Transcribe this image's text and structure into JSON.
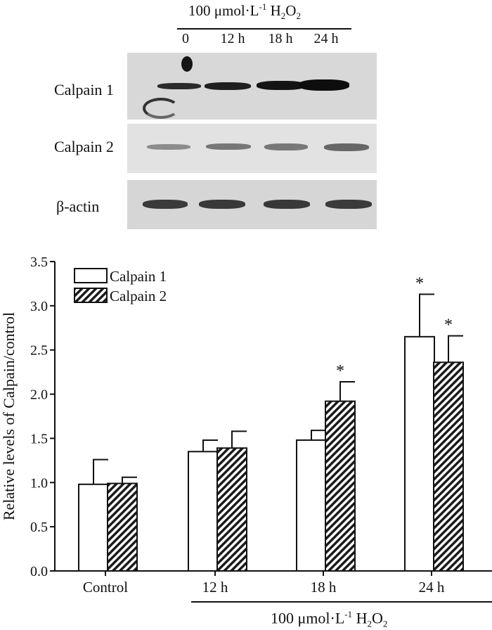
{
  "blot": {
    "header_treatment": {
      "prefix": "100 μmol·L",
      "sup": "-1",
      "mid": " H",
      "sub": "2",
      "suffix": "O",
      "sub2": "2"
    },
    "lanes": [
      "0",
      "12 h",
      "18 h",
      "24 h"
    ],
    "rows": [
      {
        "label": "Calpain 1",
        "intensities": [
          0.72,
          0.78,
          0.85,
          0.95
        ]
      },
      {
        "label": "Calpain 2",
        "intensities": [
          0.32,
          0.42,
          0.42,
          0.5
        ]
      },
      {
        "label": "β-actin",
        "intensities": [
          0.8,
          0.8,
          0.8,
          0.8
        ]
      }
    ]
  },
  "chart_data": {
    "type": "bar",
    "ylabel": "Relative levels of Calpain/control",
    "ylim": [
      0,
      3.5
    ],
    "yticks": [
      "0.0",
      "0.5",
      "1.0",
      "1.5",
      "2.0",
      "2.5",
      "3.0",
      "3.5"
    ],
    "categories": [
      "Control",
      "12 h",
      "18 h",
      "24 h"
    ],
    "series": [
      {
        "name": "Calpain 1",
        "values": [
          0.98,
          1.35,
          1.48,
          2.65
        ],
        "errors": [
          0.28,
          0.13,
          0.11,
          0.48
        ],
        "significant": [
          false,
          false,
          false,
          true
        ]
      },
      {
        "name": "Calpain 2",
        "values": [
          0.99,
          1.39,
          1.92,
          2.36
        ],
        "errors": [
          0.07,
          0.19,
          0.22,
          0.3
        ],
        "significant": [
          false,
          false,
          true,
          true
        ]
      }
    ],
    "significance_marker": "*",
    "legend_position": "top-left",
    "x_group_label": {
      "prefix": "100 μmol·L",
      "sup": "-1",
      "mid": " H",
      "sub": "2",
      "suffix": "O",
      "sub2": "2"
    }
  }
}
